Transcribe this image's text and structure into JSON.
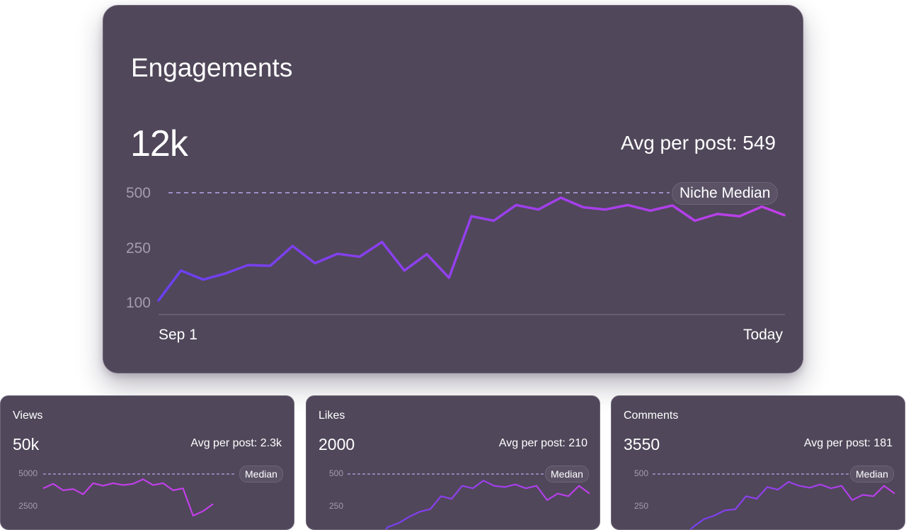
{
  "main_card": {
    "title": "Engagements",
    "total": "12k",
    "avg": "Avg per post: 549",
    "median_label": "Niche Median",
    "y_ticks": [
      "500",
      "250",
      "100"
    ],
    "x_start": "Sep 1",
    "x_end": "Today"
  },
  "cards": [
    {
      "title": "Views",
      "total": "50k",
      "avg": "Avg per post: 2.3k",
      "median_label": "Median",
      "y_ticks": [
        "5000",
        "2500"
      ]
    },
    {
      "title": "Likes",
      "total": "2000",
      "avg": "Avg per post: 210",
      "median_label": "Median",
      "y_ticks": [
        "500",
        "250"
      ]
    },
    {
      "title": "Comments",
      "total": "3550",
      "avg": "Avg per post: 181",
      "median_label": "Median",
      "y_ticks": [
        "500",
        "250"
      ]
    }
  ],
  "colors": {
    "card_bg": "#50475a",
    "line_start": "#6a3ff0",
    "line_end": "#c13fe8",
    "median_dash": "#b7a6e6",
    "tick": "#a39bae"
  },
  "chart_data": [
    {
      "type": "line",
      "title": "Engagements",
      "xlabel": "",
      "ylabel": "",
      "x_range": [
        "Sep 1",
        "Today"
      ],
      "y_axis_ticks": [
        100,
        250,
        500
      ],
      "ylim": [
        100,
        500
      ],
      "median": 500,
      "series": [
        {
          "name": "Engagements",
          "values": [
            108,
            190,
            165,
            182,
            205,
            203,
            262,
            210,
            236,
            228,
            280,
            190,
            235,
            170,
            395,
            375,
            445,
            425,
            478,
            435,
            425,
            445,
            420,
            443,
            375,
            405,
            395,
            438,
            400
          ]
        }
      ]
    },
    {
      "type": "line",
      "title": "Views",
      "y_axis_ticks": [
        2500,
        5000
      ],
      "median": 5000,
      "series": [
        {
          "name": "Views",
          "values": [
            3900,
            4250,
            3750,
            3850,
            3450,
            4300,
            4100,
            4300,
            4150,
            4250,
            4600,
            4150,
            4300,
            3750,
            3900,
            1800,
            2150,
            2700
          ]
        }
      ]
    },
    {
      "type": "line",
      "title": "Likes",
      "y_axis_ticks": [
        250,
        500
      ],
      "median": 500,
      "series": [
        {
          "name": "Likes",
          "values": [
            120,
            170,
            185,
            210,
            230,
            240,
            330,
            310,
            410,
            390,
            450,
            410,
            400,
            420,
            390,
            410,
            300,
            350,
            330,
            410,
            350
          ]
        }
      ]
    },
    {
      "type": "line",
      "title": "Comments",
      "y_axis_ticks": [
        250,
        500
      ],
      "median": 500,
      "series": [
        {
          "name": "Comments",
          "values": [
            130,
            170,
            200,
            215,
            235,
            240,
            330,
            310,
            400,
            380,
            440,
            410,
            395,
            420,
            390,
            410,
            300,
            340,
            330,
            410,
            350
          ]
        }
      ]
    }
  ]
}
